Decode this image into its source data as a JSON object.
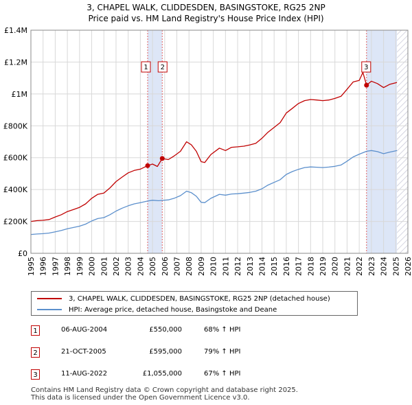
{
  "title": {
    "line1": "3, CHAPEL WALK, CLIDDESDEN, BASINGSTOKE, RG25 2NP",
    "line2": "Price paid vs. HM Land Registry's House Price Index (HPI)"
  },
  "colors": {
    "property": "#c00000",
    "hpi": "#5b8fcc",
    "highlight": "#dde6f7",
    "hatch": "#c7c7d7",
    "grid": "#d8d8d8"
  },
  "chart_data": {
    "type": "line",
    "x_range": [
      1995,
      2026
    ],
    "y_range": [
      0,
      1400000
    ],
    "y_ticks": [
      {
        "value": 0,
        "label": "£0"
      },
      {
        "value": 200000,
        "label": "£200K"
      },
      {
        "value": 400000,
        "label": "£400K"
      },
      {
        "value": 600000,
        "label": "£600K"
      },
      {
        "value": 800000,
        "label": "£800K"
      },
      {
        "value": 1000000,
        "label": "£1M"
      },
      {
        "value": 1200000,
        "label": "£1.2M"
      },
      {
        "value": 1400000,
        "label": "£1.4M"
      }
    ],
    "x_ticks": [
      "1995",
      "1996",
      "1997",
      "1998",
      "1999",
      "2000",
      "2001",
      "2002",
      "2003",
      "2004",
      "2005",
      "2006",
      "2007",
      "2008",
      "2009",
      "2010",
      "2011",
      "2012",
      "2013",
      "2014",
      "2015",
      "2016",
      "2017",
      "2018",
      "2019",
      "2020",
      "2021",
      "2022",
      "2023",
      "2024",
      "2025",
      "2026"
    ],
    "highlight_spans": [
      [
        2004.6,
        2005.8
      ],
      [
        2022.6,
        2025.1
      ]
    ],
    "hatch_from": 2025.1,
    "series": [
      {
        "name": "3, CHAPEL WALK, CLIDDESDEN, BASINGSTOKE, RG25 2NP (detached house)",
        "color": "#c00000",
        "points": [
          [
            1995.0,
            200000
          ],
          [
            1995.5,
            205000
          ],
          [
            1996.0,
            207000
          ],
          [
            1996.5,
            212000
          ],
          [
            1997.0,
            228000
          ],
          [
            1997.5,
            242000
          ],
          [
            1998.0,
            262000
          ],
          [
            1998.5,
            275000
          ],
          [
            1999.0,
            288000
          ],
          [
            1999.5,
            310000
          ],
          [
            2000.0,
            345000
          ],
          [
            2000.5,
            370000
          ],
          [
            2001.0,
            378000
          ],
          [
            2001.5,
            410000
          ],
          [
            2002.0,
            450000
          ],
          [
            2002.5,
            478000
          ],
          [
            2003.0,
            505000
          ],
          [
            2003.5,
            520000
          ],
          [
            2004.0,
            528000
          ],
          [
            2004.6,
            550000
          ],
          [
            2005.0,
            560000
          ],
          [
            2005.4,
            545000
          ],
          [
            2005.8,
            595000
          ],
          [
            2006.3,
            588000
          ],
          [
            2006.8,
            612000
          ],
          [
            2007.3,
            640000
          ],
          [
            2007.8,
            700000
          ],
          [
            2008.2,
            680000
          ],
          [
            2008.6,
            640000
          ],
          [
            2009.0,
            575000
          ],
          [
            2009.3,
            570000
          ],
          [
            2009.8,
            620000
          ],
          [
            2010.5,
            660000
          ],
          [
            2011.0,
            645000
          ],
          [
            2011.5,
            665000
          ],
          [
            2012.0,
            668000
          ],
          [
            2012.5,
            672000
          ],
          [
            2013.0,
            680000
          ],
          [
            2013.5,
            690000
          ],
          [
            2014.0,
            722000
          ],
          [
            2014.5,
            760000
          ],
          [
            2015.0,
            790000
          ],
          [
            2015.5,
            820000
          ],
          [
            2016.0,
            880000
          ],
          [
            2016.5,
            910000
          ],
          [
            2017.0,
            940000
          ],
          [
            2017.5,
            958000
          ],
          [
            2018.0,
            965000
          ],
          [
            2018.5,
            962000
          ],
          [
            2019.0,
            958000
          ],
          [
            2019.5,
            962000
          ],
          [
            2020.0,
            972000
          ],
          [
            2020.5,
            985000
          ],
          [
            2021.0,
            1030000
          ],
          [
            2021.5,
            1075000
          ],
          [
            2022.0,
            1085000
          ],
          [
            2022.3,
            1135000
          ],
          [
            2022.6,
            1055000
          ],
          [
            2023.0,
            1080000
          ],
          [
            2023.5,
            1065000
          ],
          [
            2024.0,
            1040000
          ],
          [
            2024.5,
            1060000
          ],
          [
            2025.0,
            1070000
          ],
          [
            2025.1,
            1072000
          ]
        ]
      },
      {
        "name": "HPI: Average price, detached house, Basingstoke and Deane",
        "color": "#5b8fcc",
        "points": [
          [
            1995.0,
            118000
          ],
          [
            1995.5,
            121000
          ],
          [
            1996.0,
            123000
          ],
          [
            1996.5,
            127000
          ],
          [
            1997.0,
            135000
          ],
          [
            1997.5,
            143000
          ],
          [
            1998.0,
            154000
          ],
          [
            1998.5,
            162000
          ],
          [
            1999.0,
            170000
          ],
          [
            1999.5,
            183000
          ],
          [
            2000.0,
            203000
          ],
          [
            2000.5,
            218000
          ],
          [
            2001.0,
            224000
          ],
          [
            2001.5,
            242000
          ],
          [
            2002.0,
            265000
          ],
          [
            2002.5,
            283000
          ],
          [
            2003.0,
            298000
          ],
          [
            2003.5,
            310000
          ],
          [
            2004.0,
            318000
          ],
          [
            2004.6,
            328000
          ],
          [
            2005.0,
            333000
          ],
          [
            2005.5,
            330000
          ],
          [
            2005.8,
            332000
          ],
          [
            2006.3,
            335000
          ],
          [
            2006.8,
            346000
          ],
          [
            2007.3,
            362000
          ],
          [
            2007.8,
            390000
          ],
          [
            2008.2,
            380000
          ],
          [
            2008.6,
            358000
          ],
          [
            2009.0,
            320000
          ],
          [
            2009.3,
            318000
          ],
          [
            2009.8,
            345000
          ],
          [
            2010.5,
            370000
          ],
          [
            2011.0,
            365000
          ],
          [
            2011.5,
            372000
          ],
          [
            2012.0,
            374000
          ],
          [
            2012.5,
            378000
          ],
          [
            2013.0,
            382000
          ],
          [
            2013.5,
            390000
          ],
          [
            2014.0,
            405000
          ],
          [
            2014.5,
            428000
          ],
          [
            2015.0,
            445000
          ],
          [
            2015.5,
            462000
          ],
          [
            2016.0,
            495000
          ],
          [
            2016.5,
            513000
          ],
          [
            2017.0,
            527000
          ],
          [
            2017.5,
            538000
          ],
          [
            2018.0,
            542000
          ],
          [
            2018.5,
            540000
          ],
          [
            2019.0,
            538000
          ],
          [
            2019.5,
            541000
          ],
          [
            2020.0,
            546000
          ],
          [
            2020.5,
            554000
          ],
          [
            2021.0,
            578000
          ],
          [
            2021.5,
            605000
          ],
          [
            2022.0,
            622000
          ],
          [
            2022.6,
            640000
          ],
          [
            2023.0,
            645000
          ],
          [
            2023.5,
            638000
          ],
          [
            2024.0,
            625000
          ],
          [
            2024.5,
            635000
          ],
          [
            2025.0,
            643000
          ],
          [
            2025.1,
            645000
          ]
        ]
      }
    ],
    "transactions": [
      {
        "label": "1",
        "date": "06-AUG-2004",
        "x": 2004.6,
        "price": 550000,
        "price_text": "£550,000",
        "hpi_text": "68% ↑ HPI"
      },
      {
        "label": "2",
        "date": "21-OCT-2005",
        "x": 2005.8,
        "price": 595000,
        "price_text": "£595,000",
        "hpi_text": "79% ↑ HPI"
      },
      {
        "label": "3",
        "date": "11-AUG-2022",
        "x": 2022.6,
        "price": 1055000,
        "price_text": "£1,055,000",
        "hpi_text": "67% ↑ HPI"
      }
    ]
  },
  "legend": {
    "property_label": "3, CHAPEL WALK, CLIDDESDEN, BASINGSTOKE, RG25 2NP (detached house)",
    "hpi_label": "HPI: Average price, detached house, Basingstoke and Deane"
  },
  "footer": {
    "line1": "Contains HM Land Registry data © Crown copyright and database right 2025.",
    "line2": "This data is licensed under the Open Government Licence v3.0."
  }
}
